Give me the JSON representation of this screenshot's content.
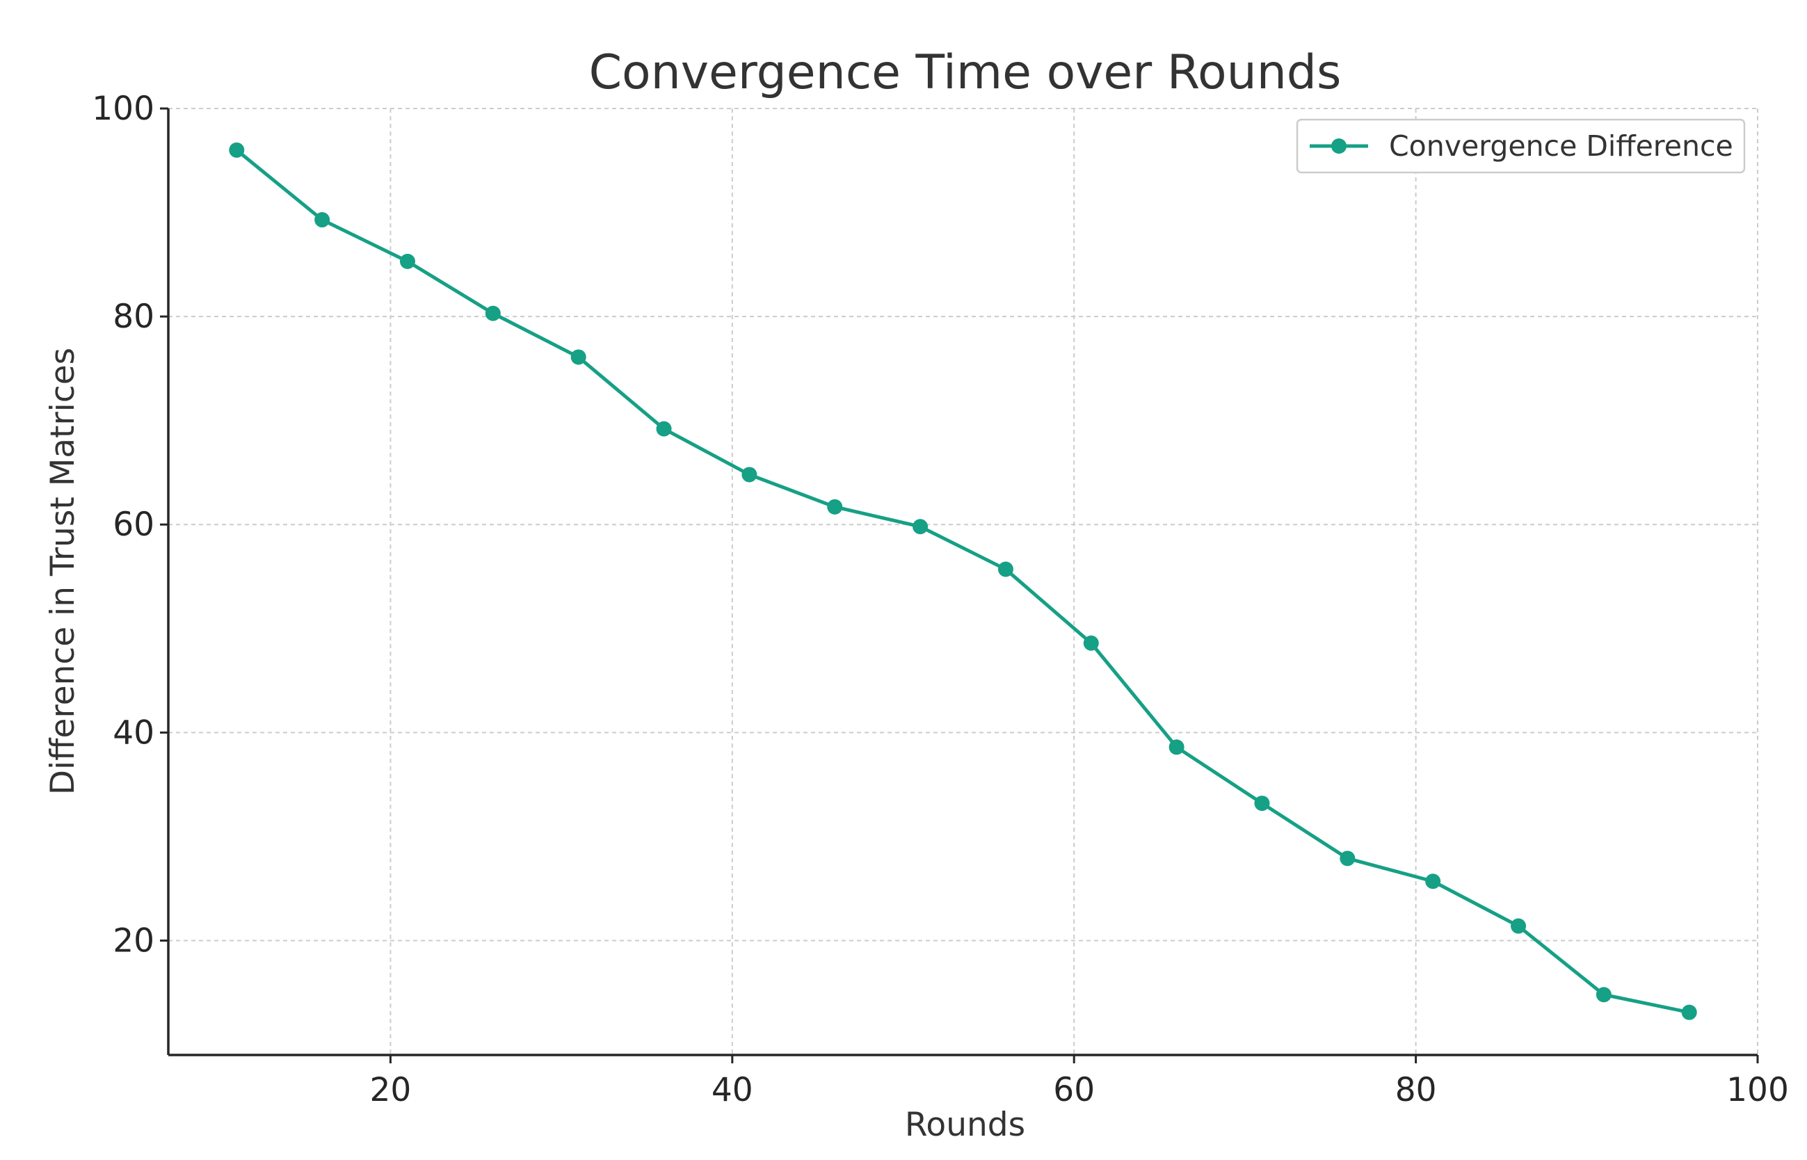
{
  "colors": {
    "series": "#16a085",
    "grid": "#cccccc",
    "axis": "#262626",
    "text": "#333333",
    "background": "#ffffff"
  },
  "chart_data": {
    "type": "line",
    "title": "Convergence Time over Rounds",
    "xlabel": "Rounds",
    "ylabel": "Difference in Trust Matrices",
    "xlim": [
      7,
      100
    ],
    "ylim": [
      9,
      100
    ],
    "xticks": [
      20,
      40,
      60,
      80,
      100
    ],
    "yticks": [
      20,
      40,
      60,
      80,
      100
    ],
    "grid": true,
    "legend": {
      "position": "top-right",
      "entries": [
        "Convergence Difference"
      ]
    },
    "series": [
      {
        "name": "Convergence Difference",
        "color": "#16a085",
        "marker": "circle",
        "x": [
          11,
          16,
          21,
          26,
          31,
          36,
          41,
          46,
          51,
          56,
          61,
          66,
          71,
          76,
          81,
          86,
          91,
          96
        ],
        "y": [
          96.0,
          89.3,
          85.3,
          80.3,
          76.1,
          69.2,
          64.8,
          61.7,
          59.8,
          55.7,
          48.6,
          38.6,
          33.2,
          27.9,
          25.7,
          21.4,
          14.8,
          13.1
        ]
      }
    ]
  }
}
